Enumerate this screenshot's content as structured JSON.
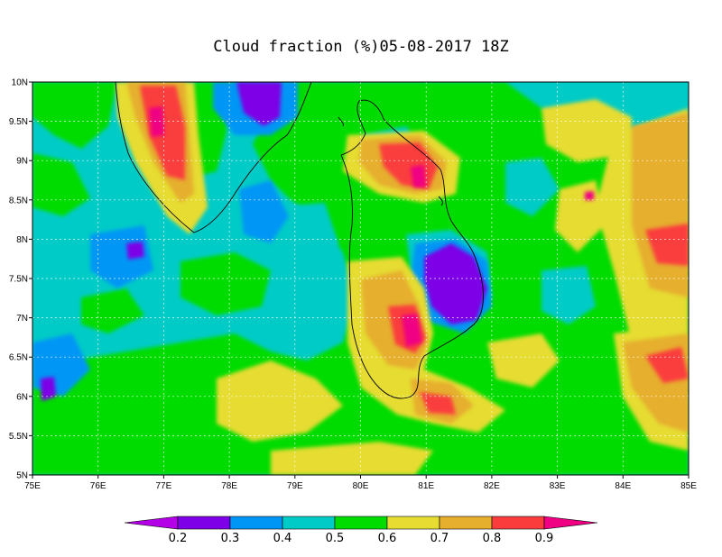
{
  "title": "Cloud fraction (%)05-08-2017 18Z",
  "map": {
    "lon_range": [
      75,
      85
    ],
    "lat_range": [
      5,
      10
    ],
    "x_ticks": [
      "75E",
      "76E",
      "77E",
      "78E",
      "79E",
      "80E",
      "81E",
      "82E",
      "83E",
      "84E",
      "85E"
    ],
    "y_ticks": [
      "5N",
      "5.5N",
      "6N",
      "6.5N",
      "7N",
      "7.5N",
      "8N",
      "8.5N",
      "9N",
      "9.5N",
      "10N"
    ],
    "background_level_color": "#00cbc6",
    "coastline_color": "#000000"
  },
  "colorbar": {
    "labels": [
      "0.2",
      "0.3",
      "0.4",
      "0.5",
      "0.6",
      "0.7",
      "0.8",
      "0.9"
    ],
    "colors": [
      "#b400e6",
      "#7d00e6",
      "#0096f5",
      "#00cbc6",
      "#00dc00",
      "#e6dc32",
      "#e6af2d",
      "#fa3c3c",
      "#f00082"
    ]
  }
}
